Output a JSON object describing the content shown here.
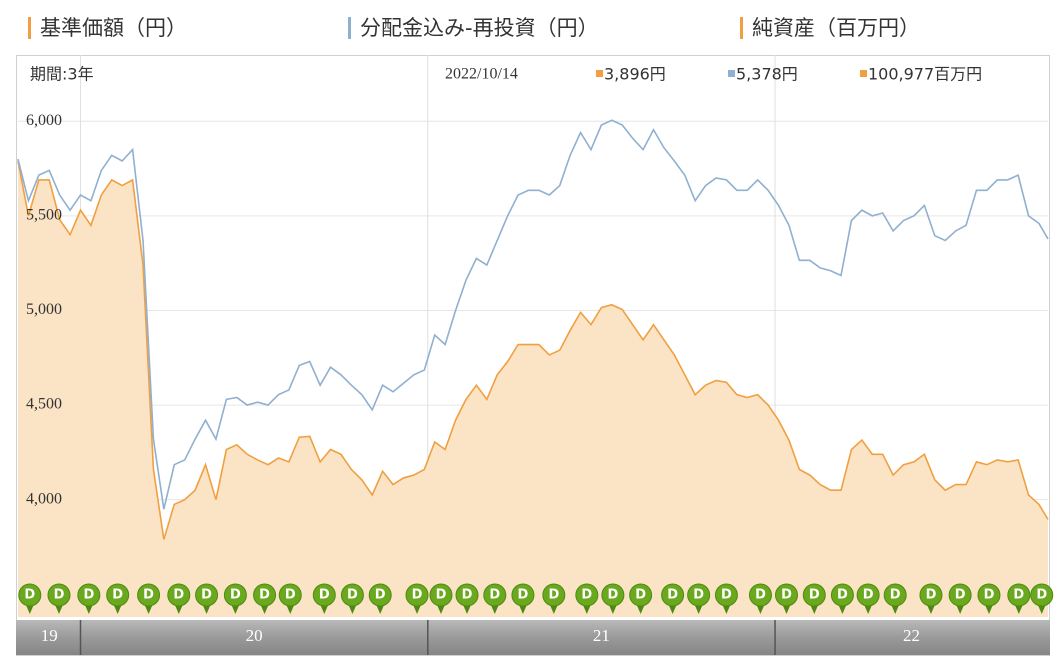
{
  "chart_data": {
    "type": "line",
    "legend": [
      "基準価額（円）",
      "分配金込み-再投資（円）",
      "純資産（百万円）"
    ],
    "legend_colors": [
      "#f0a040",
      "#8fb0d0",
      "#f0a040"
    ],
    "period": "期間:3年",
    "latest_date": "2022/10/14",
    "latest_values": [
      {
        "label": "3,896円",
        "color": "#f0a040"
      },
      {
        "label": "5,378円",
        "color": "#8fb0d0"
      },
      {
        "label": "100,977百万円",
        "color": "#f0a040"
      }
    ],
    "xlim": [
      2019.82,
      2022.786
    ],
    "ylim": [
      3380,
      6350
    ],
    "yticks": [
      {
        "value": 4000,
        "label": "4,000"
      },
      {
        "value": 4500,
        "label": "4,500"
      },
      {
        "value": 5000,
        "label": "5,000"
      },
      {
        "value": 5500,
        "label": "5,500"
      },
      {
        "value": 6000,
        "label": "6,000"
      }
    ],
    "grid": true,
    "year_labels": [
      "19",
      "20",
      "21",
      "22"
    ],
    "year_starts": [
      2020,
      2021,
      2022
    ],
    "x": [
      2019.82,
      2019.85,
      2019.88,
      2019.91,
      2019.94,
      2019.97,
      2020.0,
      2020.03,
      2020.06,
      2020.09,
      2020.12,
      2020.15,
      2020.18,
      2020.21,
      2020.24,
      2020.27,
      2020.3,
      2020.33,
      2020.36,
      2020.39,
      2020.42,
      2020.45,
      2020.48,
      2020.51,
      2020.54,
      2020.57,
      2020.6,
      2020.63,
      2020.66,
      2020.69,
      2020.72,
      2020.75,
      2020.78,
      2020.81,
      2020.84,
      2020.87,
      2020.9,
      2020.93,
      2020.96,
      2020.99,
      2021.02,
      2021.05,
      2021.08,
      2021.11,
      2021.14,
      2021.17,
      2021.2,
      2021.23,
      2021.26,
      2021.29,
      2021.32,
      2021.35,
      2021.38,
      2021.41,
      2021.44,
      2021.47,
      2021.5,
      2021.53,
      2021.56,
      2021.59,
      2021.62,
      2021.65,
      2021.68,
      2021.71,
      2021.74,
      2021.77,
      2021.8,
      2021.83,
      2021.86,
      2021.89,
      2021.92,
      2021.95,
      2021.98,
      2022.01,
      2022.04,
      2022.07,
      2022.1,
      2022.13,
      2022.16,
      2022.19,
      2022.22,
      2022.25,
      2022.28,
      2022.31,
      2022.34,
      2022.37,
      2022.4,
      2022.43,
      2022.46,
      2022.49,
      2022.52,
      2022.55,
      2022.58,
      2022.61,
      2022.64,
      2022.67,
      2022.7,
      2022.73,
      2022.76,
      2022.786
    ],
    "series": [
      {
        "name": "基準価額",
        "color": "#f0a040",
        "fill": "#fbe3c6",
        "values": [
          5790,
          5500,
          5690,
          5690,
          5480,
          5400,
          5530,
          5450,
          5610,
          5690,
          5660,
          5690,
          5240,
          4160,
          3790,
          3975,
          4000,
          4050,
          4185,
          4000,
          4265,
          4290,
          4240,
          4210,
          4185,
          4220,
          4200,
          4330,
          4335,
          4200,
          4265,
          4240,
          4160,
          4105,
          4025,
          4150,
          4080,
          4115,
          4130,
          4160,
          4305,
          4265,
          4420,
          4530,
          4605,
          4530,
          4660,
          4730,
          4820,
          4820,
          4820,
          4765,
          4790,
          4895,
          4990,
          4925,
          5015,
          5030,
          5005,
          4925,
          4845,
          4925,
          4845,
          4765,
          4660,
          4555,
          4605,
          4630,
          4620,
          4555,
          4540,
          4555,
          4500,
          4420,
          4315,
          4160,
          4130,
          4080,
          4050,
          4050,
          4265,
          4315,
          4240,
          4240,
          4130,
          4185,
          4200,
          4240,
          4105,
          4050,
          4080,
          4080,
          4200,
          4185,
          4210,
          4200,
          4210,
          4025,
          3975,
          3896
        ]
      },
      {
        "name": "分配金込み-再投資",
        "color": "#8fb0d0",
        "values": [
          5800,
          5580,
          5715,
          5740,
          5610,
          5530,
          5610,
          5580,
          5740,
          5820,
          5790,
          5850,
          5370,
          4320,
          3950,
          4185,
          4210,
          4320,
          4420,
          4320,
          4530,
          4540,
          4500,
          4515,
          4500,
          4555,
          4580,
          4710,
          4730,
          4605,
          4700,
          4660,
          4605,
          4555,
          4475,
          4605,
          4570,
          4615,
          4660,
          4685,
          4870,
          4820,
          5000,
          5160,
          5275,
          5240,
          5370,
          5500,
          5610,
          5635,
          5635,
          5610,
          5660,
          5820,
          5940,
          5850,
          5980,
          6005,
          5980,
          5910,
          5850,
          5955,
          5860,
          5790,
          5715,
          5580,
          5660,
          5700,
          5690,
          5635,
          5635,
          5690,
          5635,
          5555,
          5450,
          5265,
          5265,
          5225,
          5210,
          5185,
          5475,
          5530,
          5500,
          5515,
          5420,
          5475,
          5500,
          5555,
          5395,
          5370,
          5420,
          5450,
          5635,
          5635,
          5690,
          5690,
          5715,
          5500,
          5460,
          5378
        ]
      }
    ],
    "distribution_label": "D",
    "distribution_color": "#6aa81e",
    "distributions": [
      2019.854,
      2019.938,
      2020.024,
      2020.107,
      2020.196,
      2020.283,
      2020.363,
      2020.446,
      2020.53,
      2020.604,
      2020.702,
      2020.783,
      2020.863,
      2020.969,
      2021.038,
      2021.113,
      2021.193,
      2021.274,
      2021.363,
      2021.458,
      2021.533,
      2021.613,
      2021.705,
      2021.78,
      2021.86,
      2021.958,
      2022.033,
      2022.113,
      2022.194,
      2022.268,
      2022.346,
      2022.449,
      2022.533,
      2022.616,
      2022.702,
      2022.768
    ]
  }
}
